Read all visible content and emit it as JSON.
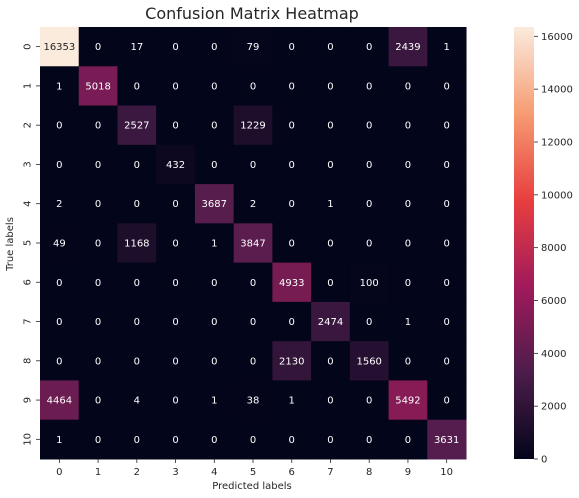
{
  "chart_data": {
    "type": "heatmap",
    "title": "Confusion Matrix Heatmap",
    "xlabel": "Predicted labels",
    "ylabel": "True labels",
    "x_categories": [
      "0",
      "1",
      "2",
      "3",
      "4",
      "5",
      "6",
      "7",
      "8",
      "9",
      "10"
    ],
    "y_categories": [
      "0",
      "1",
      "2",
      "3",
      "4",
      "5",
      "6",
      "7",
      "8",
      "9",
      "10"
    ],
    "values": [
      [
        16353,
        0,
        17,
        0,
        0,
        79,
        0,
        0,
        0,
        2439,
        1
      ],
      [
        1,
        5018,
        0,
        0,
        0,
        0,
        0,
        0,
        0,
        0,
        0
      ],
      [
        0,
        0,
        2527,
        0,
        0,
        1229,
        0,
        0,
        0,
        0,
        0
      ],
      [
        0,
        0,
        0,
        432,
        0,
        0,
        0,
        0,
        0,
        0,
        0
      ],
      [
        2,
        0,
        0,
        0,
        3687,
        2,
        0,
        1,
        0,
        0,
        0
      ],
      [
        49,
        0,
        1168,
        0,
        1,
        3847,
        0,
        0,
        0,
        0,
        0
      ],
      [
        0,
        0,
        0,
        0,
        0,
        0,
        4933,
        0,
        100,
        0,
        0
      ],
      [
        0,
        0,
        0,
        0,
        0,
        0,
        0,
        2474,
        0,
        1,
        0
      ],
      [
        0,
        0,
        0,
        0,
        0,
        0,
        2130,
        0,
        1560,
        0,
        0
      ],
      [
        4464,
        0,
        4,
        0,
        1,
        38,
        1,
        0,
        0,
        5492,
        0
      ],
      [
        1,
        0,
        0,
        0,
        0,
        0,
        0,
        0,
        0,
        0,
        3631
      ]
    ],
    "colorbar": {
      "range": [
        0,
        16353
      ],
      "ticks": [
        0,
        2000,
        4000,
        6000,
        8000,
        10000,
        12000,
        14000,
        16000
      ],
      "colormap": "rocket",
      "colormap_stops": [
        "#03051a",
        "#4c1d4b",
        "#a11a5b",
        "#e83f3f",
        "#f69c73",
        "#faebdd"
      ]
    },
    "annotation_colors": {
      "dark_cell_text": "#ffffff",
      "light_cell_text": "#262626"
    },
    "grid": false
  }
}
